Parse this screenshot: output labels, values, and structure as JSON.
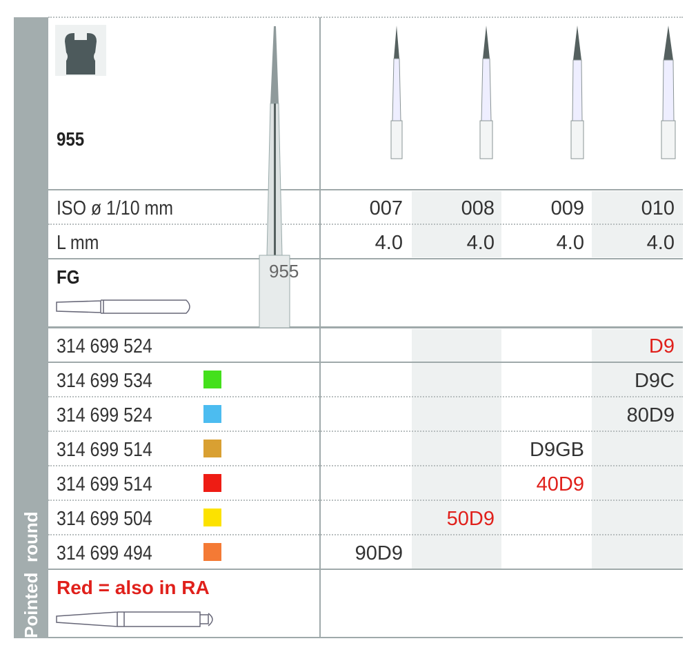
{
  "sidebar": {
    "line1": "Pointed",
    "line2": "round"
  },
  "header": {
    "model": "955",
    "sizes_label": "ISO ø 1/10 mm",
    "length_label": "L mm",
    "shank_label": "FG",
    "head_label": "955"
  },
  "columns": [
    {
      "iso": "007",
      "length": "4.0"
    },
    {
      "iso": "008",
      "length": "4.0"
    },
    {
      "iso": "009",
      "length": "4.0"
    },
    {
      "iso": "010",
      "length": "4.0"
    }
  ],
  "rows": [
    {
      "ref": "314 699 524",
      "swatch": null,
      "col": 3,
      "code": "D9",
      "red": true
    },
    {
      "ref": "314 699 534",
      "swatch": "#44e01c",
      "col": 3,
      "code": "D9C",
      "red": false
    },
    {
      "ref": "314 699 524",
      "swatch": "#4cbcf0",
      "col": 3,
      "code": "80D9",
      "red": false
    },
    {
      "ref": "314 699 514",
      "swatch": "#d9a032",
      "col": 2,
      "code": "D9GB",
      "red": false
    },
    {
      "ref": "314 699 514",
      "swatch": "#ee1c14",
      "col": 2,
      "code": "40D9",
      "red": true
    },
    {
      "ref": "314 699 504",
      "swatch": "#fce200",
      "col": 1,
      "code": "50D9",
      "red": true
    },
    {
      "ref": "314 699 494",
      "swatch": "#f47a35",
      "col": 0,
      "code": "90D9",
      "red": false
    }
  ],
  "footer": {
    "note": "Red = also in RA"
  },
  "colors": {
    "sidebar": "#a3adae",
    "red": "#e0201b",
    "shade": "#eef1f1"
  }
}
